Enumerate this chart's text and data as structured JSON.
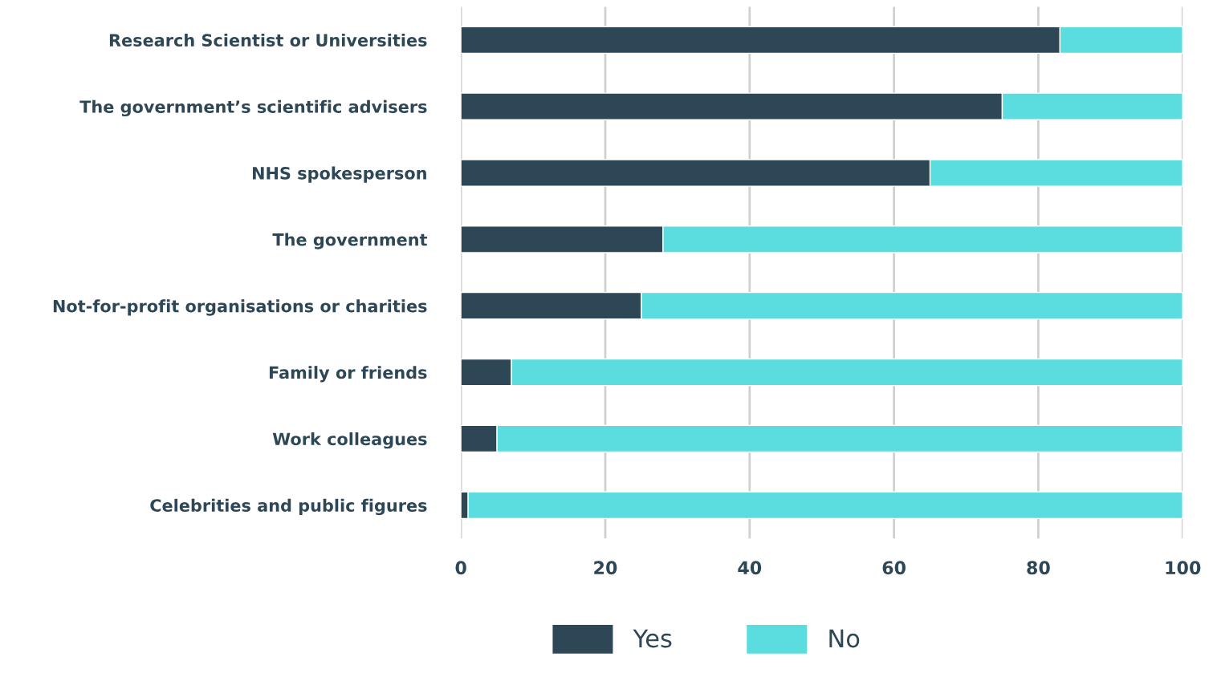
{
  "chart_data": {
    "type": "bar",
    "orientation": "horizontal",
    "stacked": true,
    "categories": [
      "Research Scientist or Universities",
      "The government’s scientific advisers",
      "NHS spokesperson",
      "The government",
      "Not-for-profit organisations or charities",
      "Family or friends",
      "Work colleagues",
      "Celebrities and public figures"
    ],
    "series": [
      {
        "name": "Yes",
        "color": "#2e4756",
        "values": [
          83,
          75,
          65,
          28,
          25,
          7,
          5,
          1
        ]
      },
      {
        "name": "No",
        "color": "#5bdde0",
        "values": [
          17,
          25,
          35,
          72,
          75,
          93,
          95,
          99
        ]
      }
    ],
    "xlim": [
      0,
      100
    ],
    "xticks": [
      0,
      20,
      40,
      60,
      80,
      100
    ],
    "grid": "x",
    "legend": "bottom"
  }
}
